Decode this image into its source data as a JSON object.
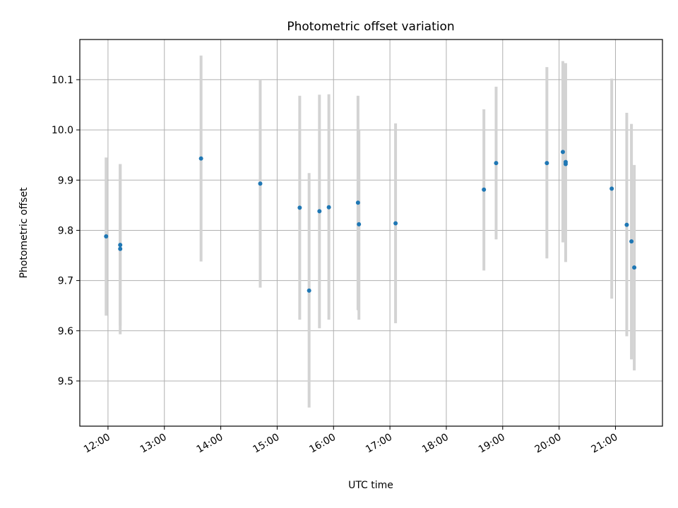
{
  "chart_data": {
    "type": "scatter",
    "title": "Photometric offset variation",
    "xlabel": "UTC time",
    "ylabel": "Photometric offset",
    "x_unit": "hours",
    "xlim": [
      "11:30",
      "21:50"
    ],
    "ylim": [
      9.41,
      10.18
    ],
    "x_ticks": [
      "12:00",
      "13:00",
      "14:00",
      "15:00",
      "16:00",
      "17:00",
      "18:00",
      "19:00",
      "20:00",
      "21:00"
    ],
    "y_ticks": [
      "9.5",
      "9.6",
      "9.7",
      "9.8",
      "9.9",
      "10.0",
      "10.1"
    ],
    "grid": true,
    "marker_color": "#1f77b4",
    "errorbar_color": "#d3d3d3",
    "points": [
      {
        "time": "11:58",
        "y": 9.788,
        "yerr_low": 9.63,
        "yerr_high": 9.945
      },
      {
        "time": "12:13",
        "y": 9.763,
        "yerr_low": 9.593,
        "yerr_high": 9.932
      },
      {
        "time": "12:13",
        "y": 9.771,
        "yerr_low": 9.61,
        "yerr_high": 9.932
      },
      {
        "time": "13:39",
        "y": 9.943,
        "yerr_low": 9.738,
        "yerr_high": 10.148
      },
      {
        "time": "14:42",
        "y": 9.893,
        "yerr_low": 9.686,
        "yerr_high": 10.1
      },
      {
        "time": "15:24",
        "y": 9.845,
        "yerr_low": 9.622,
        "yerr_high": 10.068
      },
      {
        "time": "15:34",
        "y": 9.68,
        "yerr_low": 9.447,
        "yerr_high": 9.914
      },
      {
        "time": "15:45",
        "y": 9.838,
        "yerr_low": 9.605,
        "yerr_high": 10.07
      },
      {
        "time": "15:55",
        "y": 9.846,
        "yerr_low": 9.622,
        "yerr_high": 10.071
      },
      {
        "time": "16:26",
        "y": 9.855,
        "yerr_low": 9.641,
        "yerr_high": 10.068
      },
      {
        "time": "16:27",
        "y": 9.812,
        "yerr_low": 9.622,
        "yerr_high": 10.0
      },
      {
        "time": "17:06",
        "y": 9.814,
        "yerr_low": 9.615,
        "yerr_high": 10.013
      },
      {
        "time": "18:40",
        "y": 9.881,
        "yerr_low": 9.72,
        "yerr_high": 10.041
      },
      {
        "time": "18:53",
        "y": 9.934,
        "yerr_low": 9.782,
        "yerr_high": 10.086
      },
      {
        "time": "19:47",
        "y": 9.934,
        "yerr_low": 9.744,
        "yerr_high": 10.125
      },
      {
        "time": "20:04",
        "y": 9.956,
        "yerr_low": 9.776,
        "yerr_high": 10.137
      },
      {
        "time": "20:07",
        "y": 9.932,
        "yerr_low": 9.737,
        "yerr_high": 10.133
      },
      {
        "time": "20:07",
        "y": 9.936,
        "yerr_low": 9.737,
        "yerr_high": 10.133
      },
      {
        "time": "20:56",
        "y": 9.883,
        "yerr_low": 9.664,
        "yerr_high": 10.102
      },
      {
        "time": "21:12",
        "y": 9.811,
        "yerr_low": 9.589,
        "yerr_high": 10.034
      },
      {
        "time": "21:17",
        "y": 9.778,
        "yerr_low": 9.543,
        "yerr_high": 10.012
      },
      {
        "time": "21:20",
        "y": 9.726,
        "yerr_low": 9.521,
        "yerr_high": 9.93
      }
    ]
  }
}
